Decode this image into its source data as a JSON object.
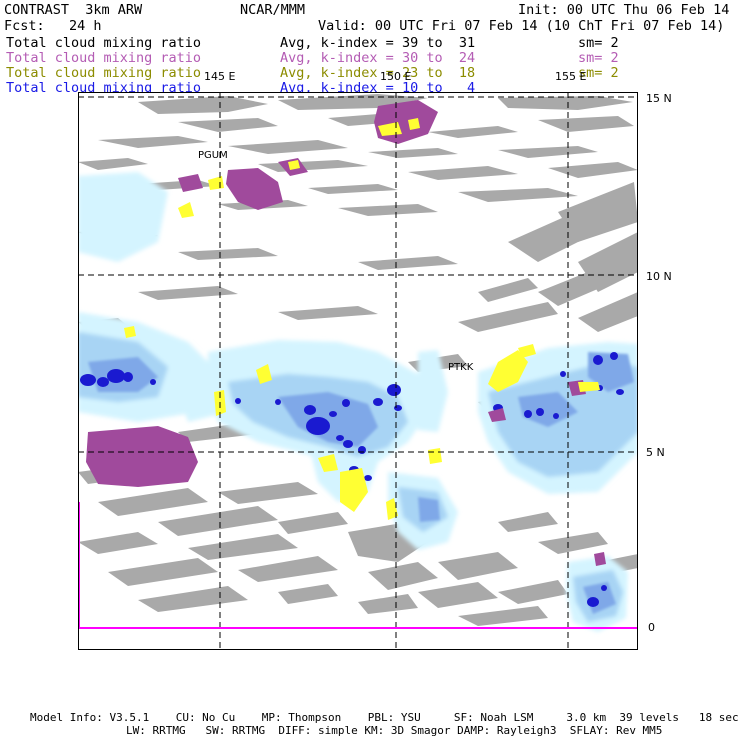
{
  "header": {
    "title": "CONTRAST  3km ARW",
    "org": "NCAR/MMM",
    "init": "Init: 00 UTC Thu 06 Feb 14",
    "fcst": "Fcst:   24 h",
    "valid": "Valid: 00 UTC Fri 07 Feb 14 (10 ChT Fri 07 Feb 14)"
  },
  "fields": [
    {
      "name": "Total cloud mixing ratio",
      "stat": "Avg, k-index =",
      "range": "39 to  31",
      "sm": "sm= 2",
      "color": "#000000"
    },
    {
      "name": "Total cloud mixing ratio",
      "stat": "Avg, k-index =",
      "range": "30 to  24",
      "sm": "sm= 2",
      "color": "#b45cb4"
    },
    {
      "name": "Total cloud mixing ratio",
      "stat": "Avg, k-index =",
      "range": "23 to  18",
      "sm": "sm= 2",
      "color": "#8c8c00"
    },
    {
      "name": "Total cloud mixing ratio",
      "stat": "Avg, k-index =",
      "range": "10 to   4",
      "sm": "",
      "color": "#1a1ae6"
    }
  ],
  "map": {
    "lon_labels": [
      "145 E",
      "150 E",
      "155 E"
    ],
    "lat_labels": [
      "15 N",
      "10 N",
      "5 N",
      "0"
    ],
    "stations": [
      "PGUM",
      "PTKK"
    ],
    "colors": {
      "land_gray": "#a9a9a9",
      "light_cyan": "#d4f4ff",
      "light_blue": "#a8d4f4",
      "mid_blue": "#7fa8e8",
      "dark_blue": "#1a1ad0",
      "purple": "#a04a9c",
      "yellow": "#ffff33",
      "magenta_line": "#ff00ff"
    }
  },
  "footer": {
    "line1": "Model Info: V3.5.1    CU: No Cu    MP: Thompson    PBL: YSU     SF: Noah LSM     3.0 km  39 levels   18 sec",
    "line2": "LW: RRTMG   SW: RRTMG  DIFF: simple KM: 3D Smagor DAMP: Rayleigh3  SFLAY: Rev MM5"
  }
}
